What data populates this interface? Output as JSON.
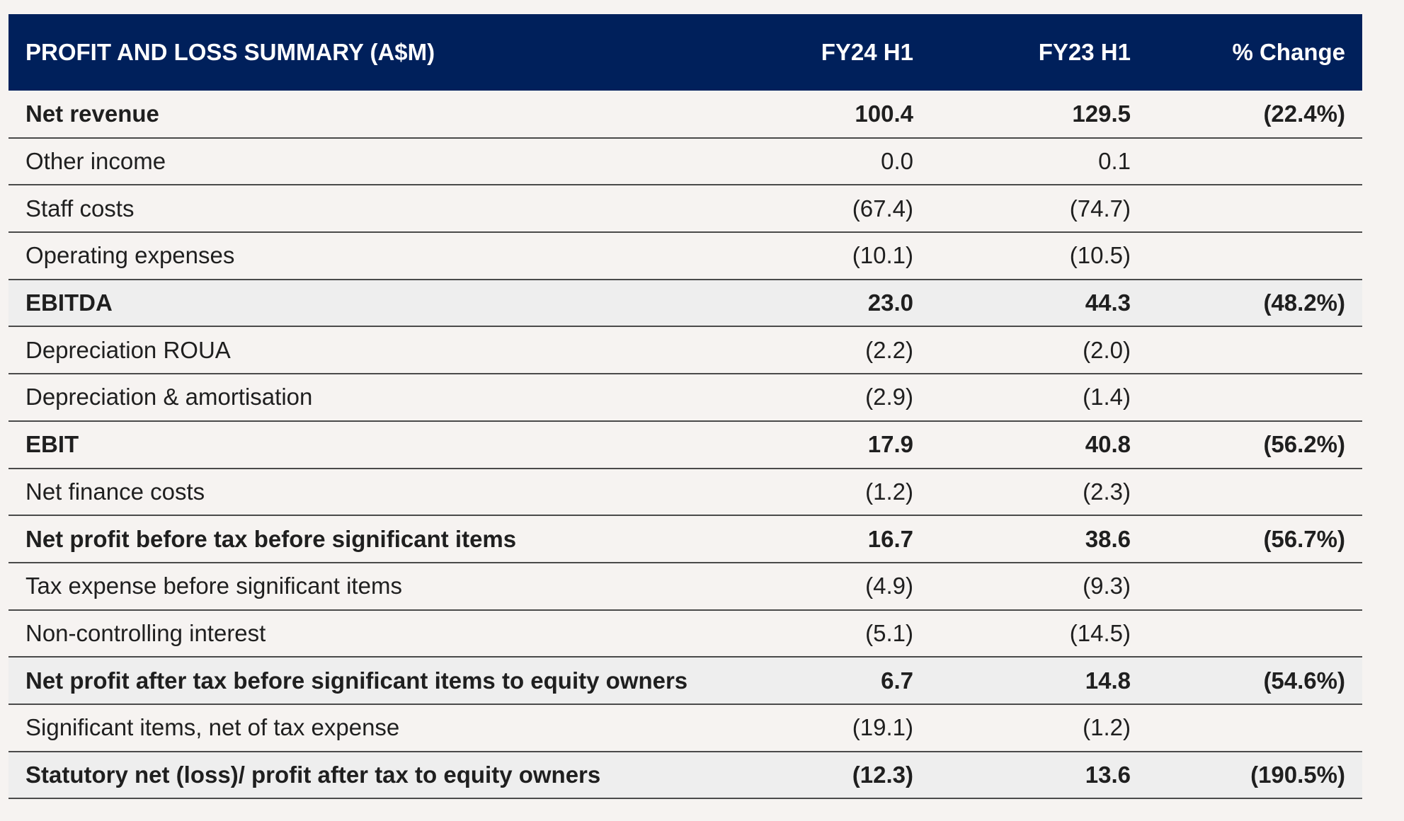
{
  "table": {
    "headers": [
      "PROFIT AND LOSS SUMMARY (A$M)",
      "FY24 H1",
      "FY23 H1",
      "% Change"
    ],
    "rows": [
      {
        "label": "Net revenue",
        "fy24": "100.4",
        "fy23": "129.5",
        "change": "(22.4%)",
        "bold": true,
        "shaded": false
      },
      {
        "label": "Other income",
        "fy24": "0.0",
        "fy23": "0.1",
        "change": "",
        "bold": false,
        "shaded": false
      },
      {
        "label": "Staff costs",
        "fy24": "(67.4)",
        "fy23": "(74.7)",
        "change": "",
        "bold": false,
        "shaded": false
      },
      {
        "label": "Operating expenses",
        "fy24": "(10.1)",
        "fy23": "(10.5)",
        "change": "",
        "bold": false,
        "shaded": false
      },
      {
        "label": "EBITDA",
        "fy24": "23.0",
        "fy23": "44.3",
        "change": "(48.2%)",
        "bold": true,
        "shaded": true
      },
      {
        "label": "Depreciation ROUA",
        "fy24": "(2.2)",
        "fy23": "(2.0)",
        "change": "",
        "bold": false,
        "shaded": false
      },
      {
        "label": "Depreciation & amortisation",
        "fy24": "(2.9)",
        "fy23": "(1.4)",
        "change": "",
        "bold": false,
        "shaded": false
      },
      {
        "label": "EBIT",
        "fy24": "17.9",
        "fy23": "40.8",
        "change": "(56.2%)",
        "bold": true,
        "shaded": false
      },
      {
        "label": "Net finance costs",
        "fy24": "(1.2)",
        "fy23": "(2.3)",
        "change": "",
        "bold": false,
        "shaded": false
      },
      {
        "label": "Net profit before tax before significant items",
        "fy24": "16.7",
        "fy23": "38.6",
        "change": "(56.7%)",
        "bold": true,
        "shaded": false
      },
      {
        "label": "Tax expense before significant items",
        "fy24": "(4.9)",
        "fy23": "(9.3)",
        "change": "",
        "bold": false,
        "shaded": false
      },
      {
        "label": "Non-controlling interest",
        "fy24": "(5.1)",
        "fy23": "(14.5)",
        "change": "",
        "bold": false,
        "shaded": false
      },
      {
        "label": "Net profit after tax before significant items to equity owners",
        "fy24": "6.7",
        "fy23": "14.8",
        "change": "(54.6%)",
        "bold": true,
        "shaded": true
      },
      {
        "label": "Significant items, net of tax expense",
        "fy24": "(19.1)",
        "fy23": "(1.2)",
        "change": "",
        "bold": false,
        "shaded": false
      },
      {
        "label": "Statutory net (loss)/ profit after tax to equity owners",
        "fy24": "(12.3)",
        "fy23": "13.6",
        "change": "(190.5%)",
        "bold": true,
        "shaded": true
      }
    ]
  },
  "colors": {
    "header_bg": "#00205b",
    "header_text": "#ffffff",
    "page_bg": "#f6f3f1",
    "shaded_row": "#eeeeee",
    "rule": "#4a4a4a"
  }
}
